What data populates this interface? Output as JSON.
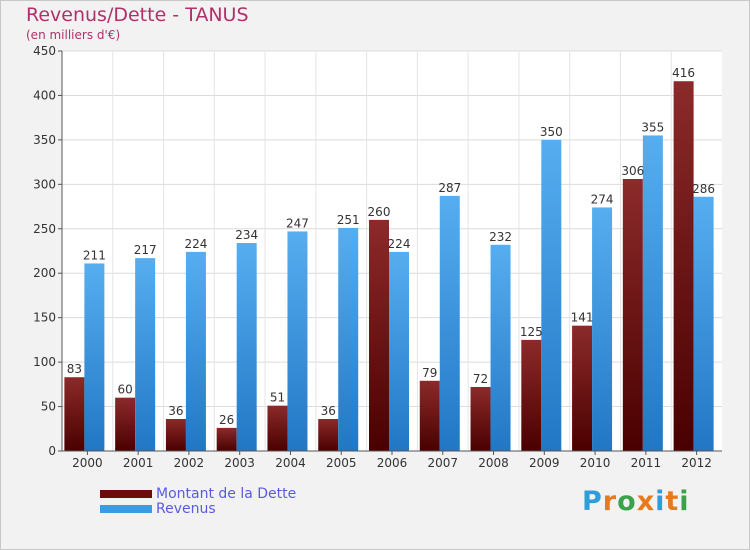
{
  "header": {
    "title": "Revenus/Dette - TANUS",
    "subtitle": "(en milliers d'€)"
  },
  "chart_data": {
    "type": "bar",
    "categories": [
      "2000",
      "2001",
      "2002",
      "2003",
      "2004",
      "2005",
      "2006",
      "2007",
      "2008",
      "2009",
      "2010",
      "2011",
      "2012"
    ],
    "series": [
      {
        "name": "Montant de la Dette",
        "color": "#7a1a1a",
        "values": [
          83,
          60,
          36,
          26,
          51,
          36,
          260,
          79,
          72,
          125,
          141,
          306,
          416
        ]
      },
      {
        "name": "Revenus",
        "color": "#3d9be0",
        "values": [
          211,
          217,
          224,
          234,
          247,
          251,
          224,
          287,
          232,
          350,
          274,
          355,
          286
        ]
      }
    ],
    "ylim": [
      0,
      450
    ],
    "yticks": [
      0,
      50,
      100,
      150,
      200,
      250,
      300,
      350,
      400,
      450
    ],
    "grid": true,
    "legend": "bottom-left"
  },
  "legend": {
    "items": [
      {
        "label": "Montant de la Dette",
        "color": "#7a1a1a"
      },
      {
        "label": "Revenus",
        "color": "#3d9be0"
      }
    ]
  },
  "logo": {
    "letters": [
      "P",
      "r",
      "o",
      "x",
      "i",
      "t",
      "i"
    ],
    "colors": [
      "#2f9ed8",
      "#e87a1e",
      "#3aa34a",
      "#e87a1e",
      "#2f9ed8",
      "#e87a1e",
      "#3aa34a"
    ]
  }
}
